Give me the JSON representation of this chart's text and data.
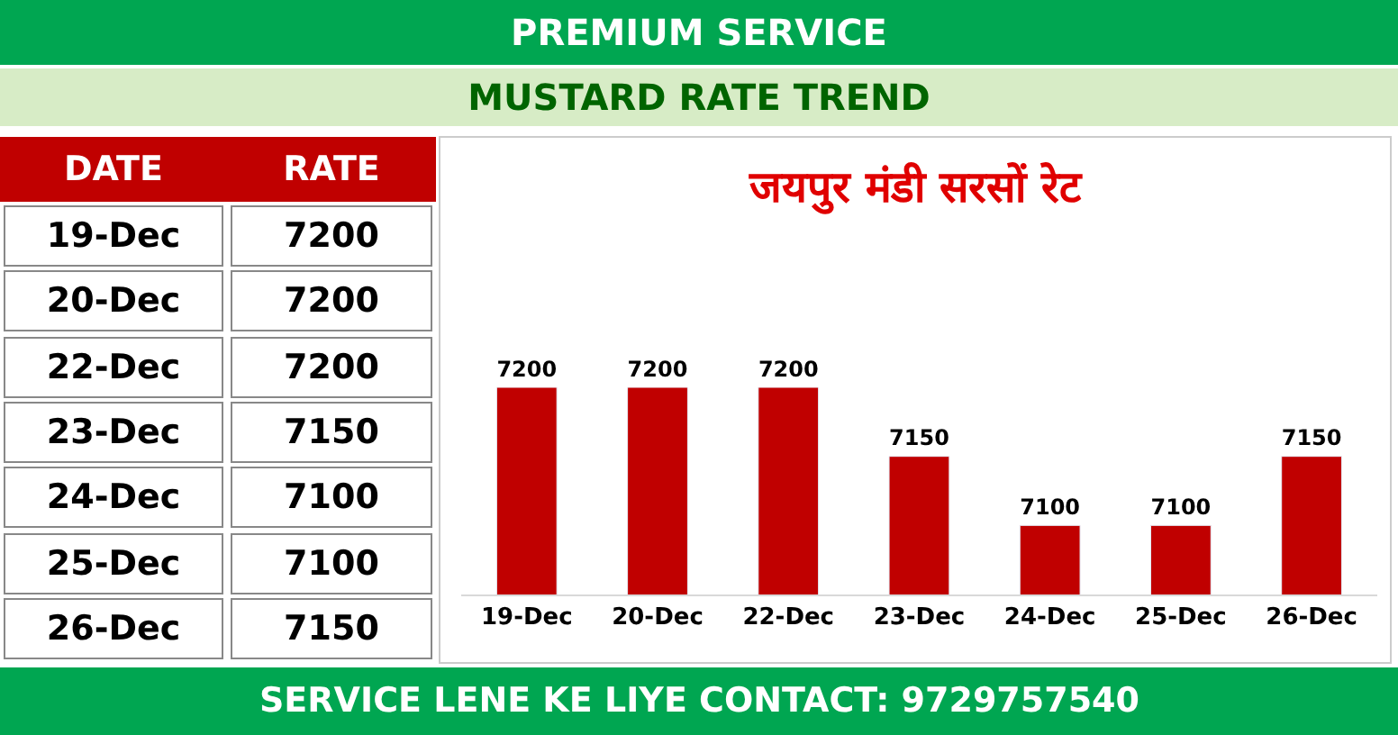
{
  "chart_data": [
    {
      "type": "other",
      "annotations": [
        "DATE",
        "RATE",
        "19-Dec",
        "7200",
        "20-Dec",
        "7200",
        "22-Dec",
        "7200",
        "23-Dec",
        "7150",
        "24-Dec",
        "7100",
        "25-Dec",
        "7100",
        "26-Dec",
        "7150"
      ]
    },
    {
      "type": "bar",
      "title": "PREMIUM SERVICE",
      "subtitle": "MUSTARD RATE TREND",
      "categories": [
        "19-Dec",
        "20-Dec",
        "22-Dec",
        "23-Dec",
        "24-Dec",
        "25-Dec",
        "26-Dec"
      ],
      "values": [
        7200,
        7200,
        7200,
        7150,
        7100,
        7100,
        7150
      ],
      "color": "#c00000",
      "tick_labels": "x",
      "data_labels": true,
      "annotations": [
        "जयपुर मंडी सरसों रेट",
        "SERVICE LENE KE LIYE CONTACT: 9729757540"
      ]
    }
  ]
}
